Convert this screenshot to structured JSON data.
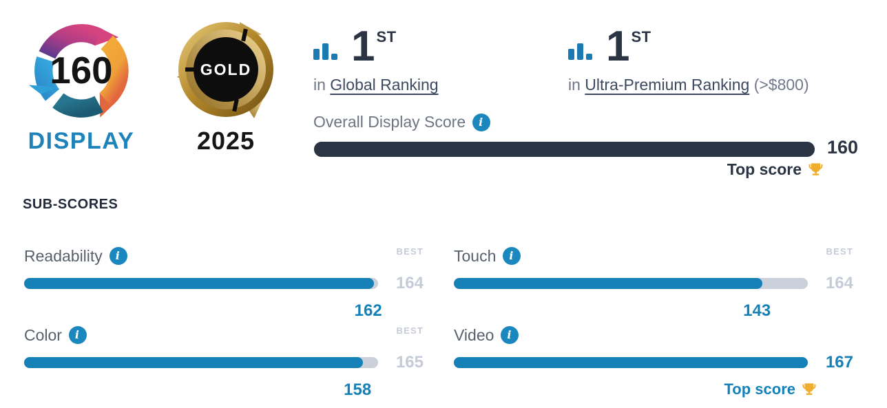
{
  "score_badge": {
    "score": "160",
    "category": "DISPLAY"
  },
  "award_badge": {
    "tier": "GOLD",
    "year": "2025"
  },
  "rankings": [
    {
      "rank": "1",
      "ordinal": "ST",
      "prefix": "in",
      "link_text": "Global Ranking",
      "suffix_note": ""
    },
    {
      "rank": "1",
      "ordinal": "ST",
      "prefix": "in",
      "link_text": "Ultra-Premium Ranking",
      "suffix_note": "(>$800)"
    }
  ],
  "overall": {
    "label": "Overall Display Score",
    "score": "160",
    "top_score_label": "Top score"
  },
  "subscores_heading": "SUB-SCORES",
  "subscores": [
    {
      "name": "Readability",
      "score": 162,
      "best": 164,
      "best_heading": "BEST"
    },
    {
      "name": "Touch",
      "score": 143,
      "best": 164,
      "best_heading": "BEST"
    },
    {
      "name": "Color",
      "score": 158,
      "best": 165,
      "best_heading": "BEST"
    },
    {
      "name": "Video",
      "score": 167,
      "best": 167,
      "is_top": true,
      "top_score_label": "Top score"
    }
  ],
  "icons": {
    "info_glyph": "i",
    "trophy": "trophy",
    "ranking_bars": "bar-chart"
  },
  "colors": {
    "accent_blue": "#1581b7",
    "navy": "#2b3442",
    "track_gray": "#ccd0db",
    "muted_gray": "#c6cbd8",
    "label_gray": "#585f6d",
    "gold": "#f0ae2e",
    "display_blue": "#1f83ba"
  }
}
